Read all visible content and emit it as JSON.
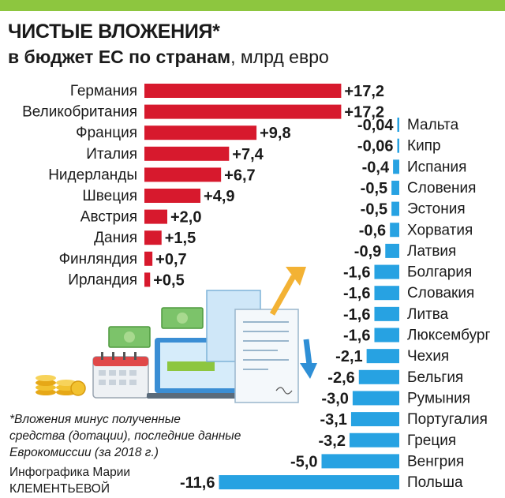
{
  "header": {
    "title_main": "ЧИСТЫЕ ВЛОЖЕНИЯ*",
    "subtitle_bold": "в бюджет ЕС по странам",
    "subtitle_unit": ", млрд евро"
  },
  "footnote": {
    "line1": "*Вложения минус полученные",
    "line2": "средства (дотации), последние данные",
    "line3": "Еврокомиссии (за 2018 г.)"
  },
  "credit": {
    "line1": "Инфографика Марии",
    "line2": "КЛЕМЕНТЬЕВОЙ"
  },
  "colors": {
    "positive": "#d7192d",
    "negative": "#27a2e2",
    "accent_green": "#8dc63f"
  },
  "chart_data": [
    {
      "type": "bar",
      "series_sign": "positive",
      "categories": [
        "Германия",
        "Великобритания",
        "Франция",
        "Италия",
        "Нидерланды",
        "Швеция",
        "Австрия",
        "Дания",
        "Финляндия",
        "Ирландия"
      ],
      "values": [
        17.2,
        17.2,
        9.8,
        7.4,
        6.7,
        4.9,
        2.0,
        1.5,
        0.7,
        0.5
      ],
      "labels": [
        "+17,2",
        "+17,2",
        "+9,8",
        "+7,4",
        "+6,7",
        "+4,9",
        "+2,0",
        "+1,5",
        "+0,7",
        "+0,5"
      ]
    },
    {
      "type": "bar",
      "series_sign": "negative",
      "categories": [
        "Мальта",
        "Кипр",
        "Испания",
        "Словения",
        "Эстония",
        "Хорватия",
        "Латвия",
        "Болгария",
        "Словакия",
        "Литва",
        "Люксембург",
        "Чехия",
        "Бельгия",
        "Румыния",
        "Португалия",
        "Греция",
        "Венгрия",
        "Польша"
      ],
      "values": [
        -0.04,
        -0.06,
        -0.4,
        -0.5,
        -0.5,
        -0.6,
        -0.9,
        -1.6,
        -1.6,
        -1.6,
        -1.6,
        -2.1,
        -2.6,
        -3.0,
        -3.1,
        -3.2,
        -5.0,
        -11.6
      ],
      "labels": [
        "-0,04",
        "-0,06",
        "-0,4",
        "-0,5",
        "-0,5",
        "-0,6",
        "-0,9",
        "-1,6",
        "-1,6",
        "-1,6",
        "-1,6",
        "-2,1",
        "-2,6",
        "-3,0",
        "-3,1",
        "-3,2",
        "-5,0",
        "-11,6"
      ]
    }
  ]
}
